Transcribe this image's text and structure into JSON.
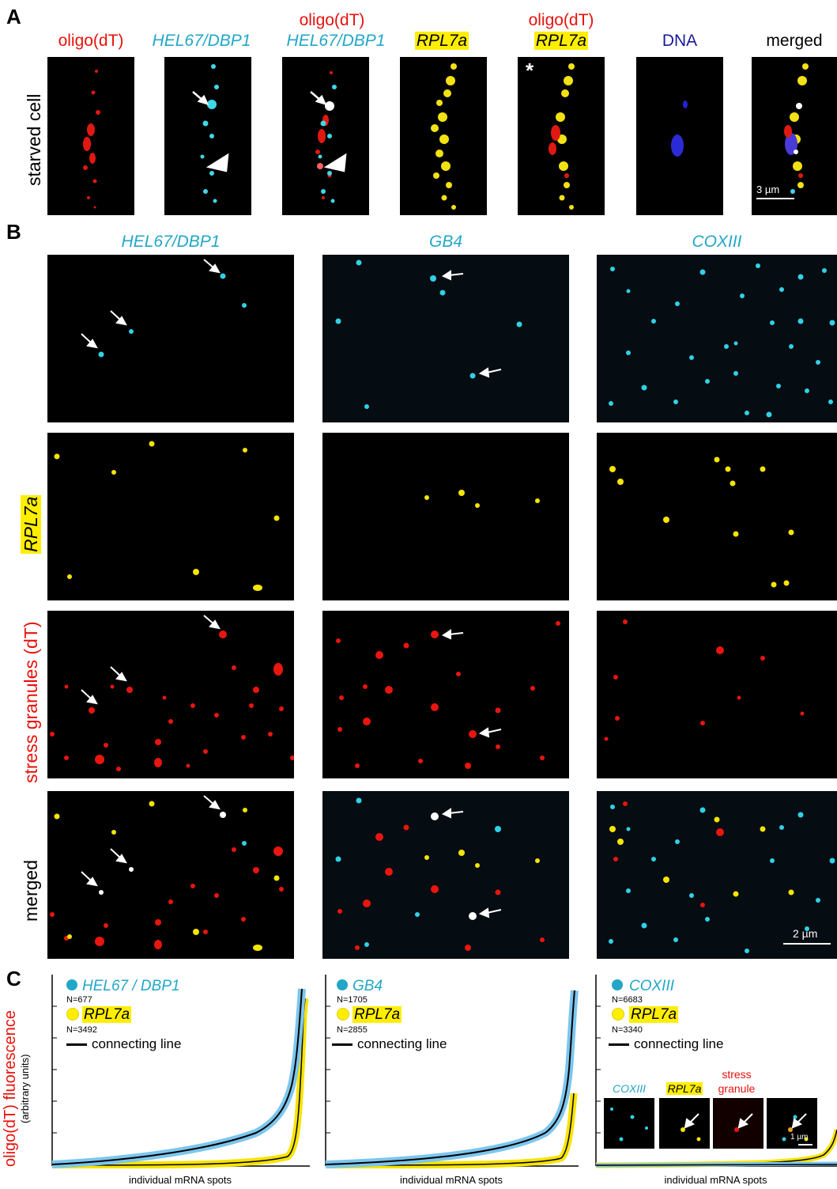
{
  "panel_labels": {
    "a": "A",
    "b": "B",
    "c": "C"
  },
  "panelA": {
    "row_label": "starved cell",
    "titles": {
      "p1": "oligo(dT)",
      "p2": "HEL67/DBP1",
      "p3_top": "oligo(dT)",
      "p3_bottom": "HEL67/DBP1",
      "p4": "RPL7a",
      "p5_top": "oligo(dT)",
      "p5_bottom": "RPL7a",
      "p6": "DNA",
      "p7": "merged"
    },
    "asterisk": "*",
    "scale_bar": "3 µm"
  },
  "panelB": {
    "col_titles": [
      "HEL67/DBP1",
      "GB4",
      "COXIII"
    ],
    "row_labels": {
      "rpl": "RPL7a",
      "sg": "stress granules (dT)",
      "merged": "merged"
    },
    "scale_bar": "2 µm"
  },
  "panelC": {
    "ylabel": "oligo(dT) fluorescence",
    "ylabel_sub": "(arbitrary units)",
    "xlabel": "individual mRNA spots",
    "connecting_line": "connecting line",
    "plots": [
      {
        "mrna": "HEL67 /  DBP1",
        "mrna_n": "N=677",
        "ref": "RPL7a",
        "ref_n": "N=3492"
      },
      {
        "mrna": "GB4",
        "mrna_n": "N=1705",
        "ref": "RPL7a",
        "ref_n": "N=2855"
      },
      {
        "mrna": "COXIII",
        "mrna_n": "N=6683",
        "ref": "RPL7a",
        "ref_n": "N=3340"
      }
    ],
    "inset": {
      "t1": "COXIII",
      "t2": "RPL7a",
      "t3_top": "stress",
      "t3_bottom": "granule",
      "scale": "1 µm"
    }
  },
  "colors": {
    "cyan": "#22a7c7",
    "red": "#e8120c",
    "yellow": "#ffee00",
    "navy": "#1b1b99"
  }
}
